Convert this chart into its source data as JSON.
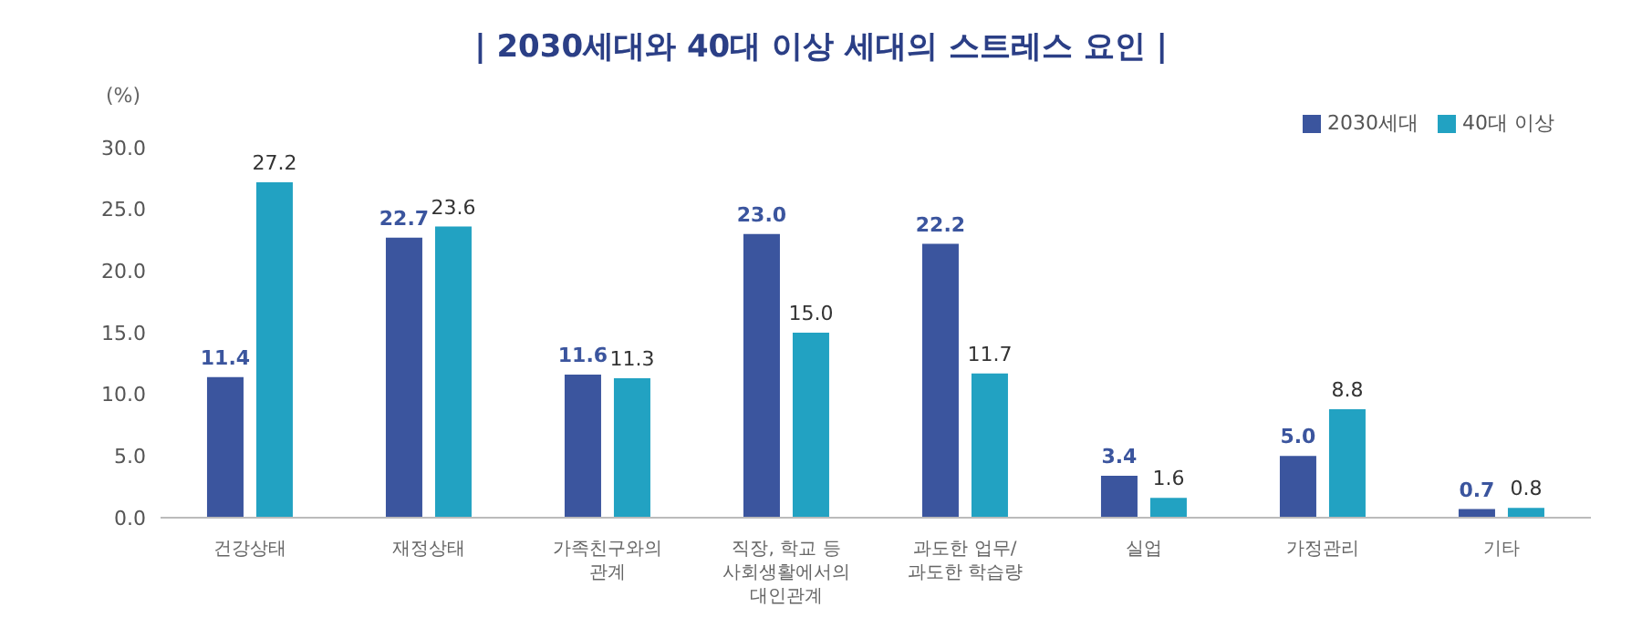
{
  "chart_data": {
    "type": "bar",
    "title": "| 2030세대와 40대 이상 세대의 스트레스 요인 |",
    "ylabel": "(%)",
    "categories": [
      "건강상태",
      "재정상태",
      "가족친구와의\n관계",
      "직장, 학교 등\n사회생활에서의\n대인관계",
      "과도한 업무/\n과도한 학습량",
      "실업",
      "가정관리",
      "기타"
    ],
    "series": [
      {
        "name": "2030세대",
        "color": "#3b559e",
        "values": [
          11.4,
          22.7,
          11.6,
          23.0,
          22.2,
          3.4,
          5.0,
          0.7
        ],
        "value_labels": [
          "11.4",
          "22.7",
          "11.6",
          "23.0",
          "22.2",
          "3.4",
          "5.0",
          "0.7"
        ]
      },
      {
        "name": "40대 이상",
        "color": "#22a2c2",
        "values": [
          27.2,
          23.6,
          11.3,
          15.0,
          11.7,
          1.6,
          8.8,
          0.8
        ],
        "value_labels": [
          "27.2",
          "23.6",
          "11.3",
          "15.0",
          "11.7",
          "1.6",
          "8.8",
          "0.8"
        ]
      }
    ],
    "ylim": [
      0,
      30
    ],
    "yticks": [
      {
        "value": 0,
        "label": "0.0"
      },
      {
        "value": 5,
        "label": "5.0"
      },
      {
        "value": 10,
        "label": "10.0"
      },
      {
        "value": 15,
        "label": "15.0"
      },
      {
        "value": 20,
        "label": "20.0"
      },
      {
        "value": 25,
        "label": "25.0"
      },
      {
        "value": 30,
        "label": "30.0"
      }
    ],
    "grid": false,
    "legend": "top right"
  }
}
